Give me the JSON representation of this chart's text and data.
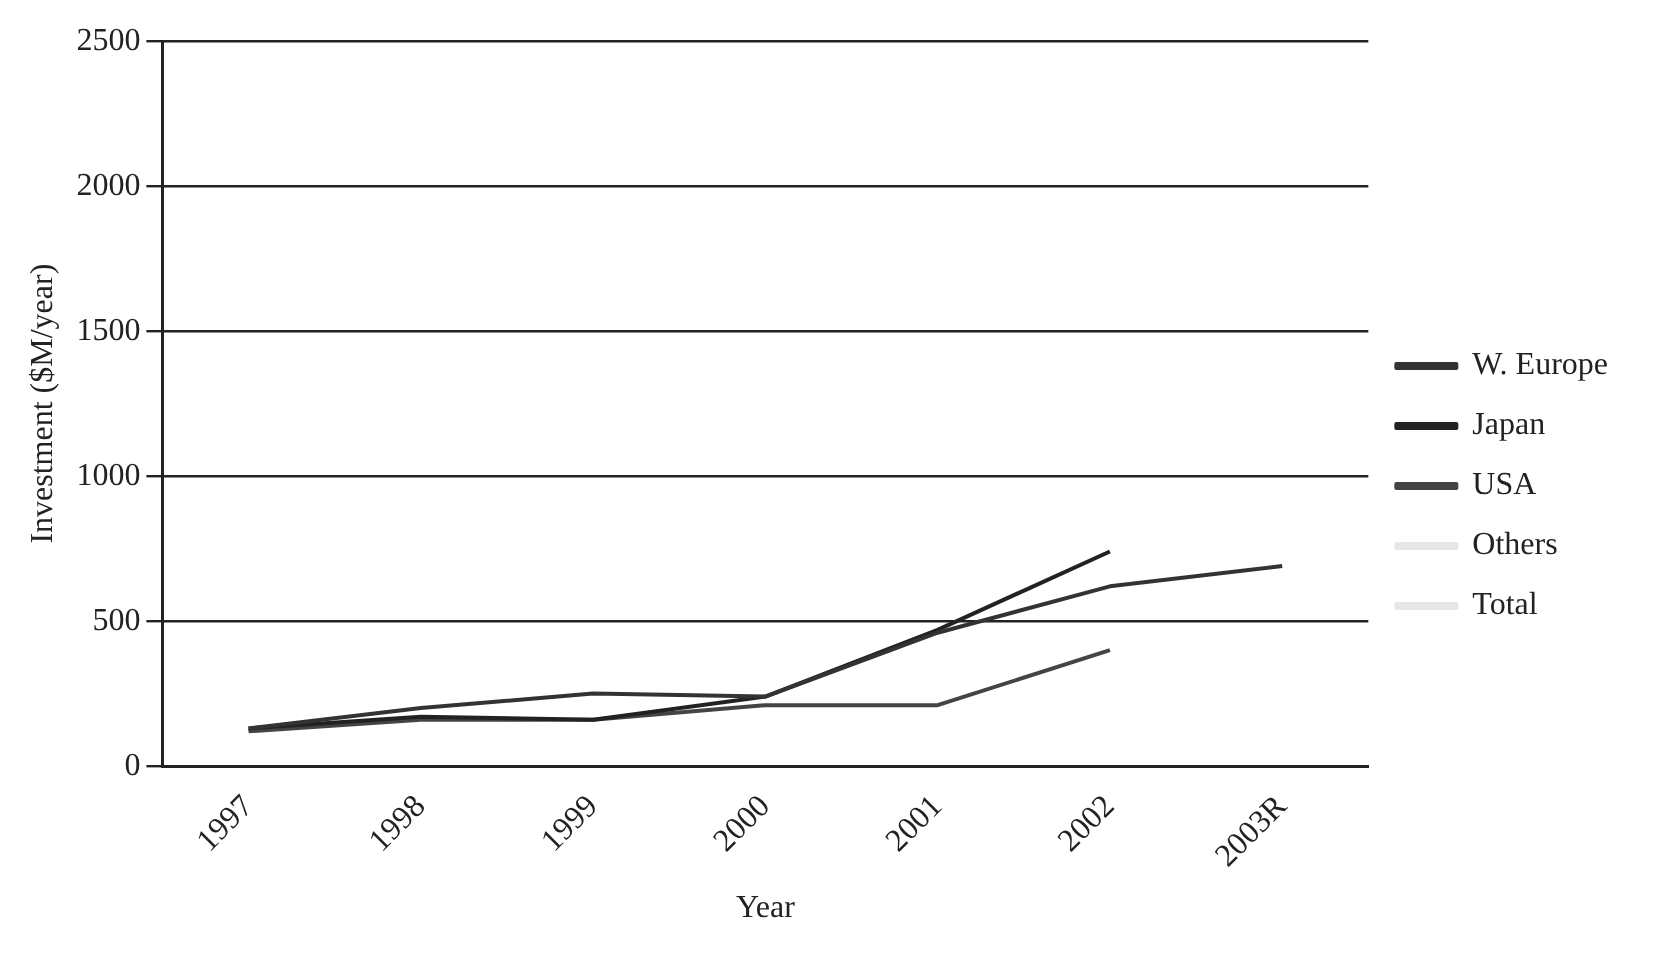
{
  "chart_data": {
    "type": "line",
    "xlabel": "Year",
    "ylabel": "Investment ($M/year)",
    "categories": [
      "1997",
      "1998",
      "1999",
      "2000",
      "2001",
      "2002",
      "2003R"
    ],
    "series": [
      {
        "name": "W. Europe",
        "color": "#333333",
        "values": [
          130,
          200,
          250,
          240,
          460,
          620,
          690
        ]
      },
      {
        "name": "Japan",
        "color": "#222222",
        "values": [
          130,
          170,
          160,
          240,
          470,
          740,
          null
        ]
      },
      {
        "name": "USA",
        "color": "#444444",
        "values": [
          120,
          160,
          160,
          210,
          210,
          400,
          null
        ]
      },
      {
        "name": "Others",
        "color": "#e6e6e6",
        "values": [
          null,
          null,
          null,
          null,
          null,
          null,
          null
        ]
      },
      {
        "name": "Total",
        "color": "#e6e6e6",
        "values": [
          null,
          null,
          null,
          null,
          null,
          null,
          null
        ]
      }
    ],
    "ylim": [
      0,
      2500
    ],
    "yticks": [
      0,
      500,
      1000,
      1500,
      2000,
      2500
    ],
    "grid": "y",
    "legend": "right",
    "marker": "none",
    "line_style": "solid"
  }
}
